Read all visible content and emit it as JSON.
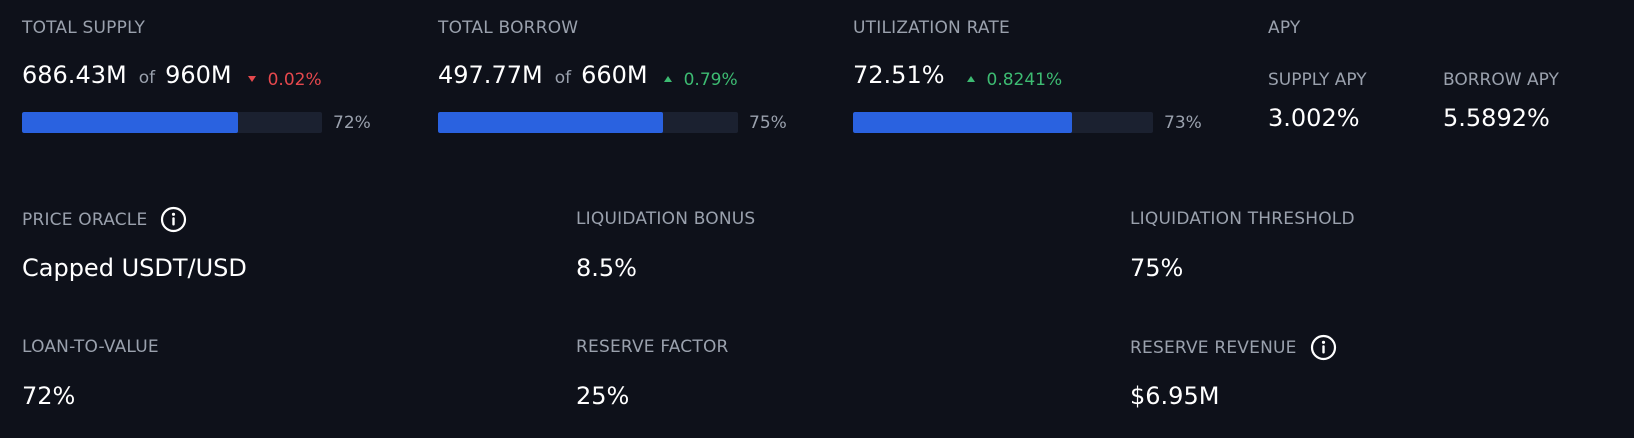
{
  "colors": {
    "background": "#0e111a",
    "label": "#9aa1ad",
    "bar_fill": "#2a62e0",
    "bar_track": "#1b2130",
    "negative": "#e5484d",
    "positive": "#3dbb72"
  },
  "total_supply": {
    "label": "TOTAL SUPPLY",
    "amount": "686.43M",
    "of": "of",
    "cap": "960M",
    "change": "0.02%",
    "change_direction": "down",
    "progress_pct": "72%",
    "progress_fraction": 0.72
  },
  "total_borrow": {
    "label": "TOTAL BORROW",
    "amount": "497.77M",
    "of": "of",
    "cap": "660M",
    "change": "0.79%",
    "change_direction": "up",
    "progress_pct": "75%",
    "progress_fraction": 0.75
  },
  "utilization_rate": {
    "label": "UTILIZATION RATE",
    "amount": "72.51%",
    "change": "0.8241%",
    "change_direction": "up",
    "progress_pct": "73%",
    "progress_fraction": 0.73
  },
  "apy": {
    "label": "APY",
    "supply_label": "SUPPLY APY",
    "supply_value": "3.002%",
    "borrow_label": "BORROW APY",
    "borrow_value": "5.5892%"
  },
  "price_oracle": {
    "label": "PRICE ORACLE",
    "icon": "info-icon",
    "value": "Capped USDT/USD"
  },
  "liquidation_bonus": {
    "label": "LIQUIDATION BONUS",
    "value": "8.5%"
  },
  "liquidation_threshold": {
    "label": "LIQUIDATION THRESHOLD",
    "value": "75%"
  },
  "loan_to_value": {
    "label": "LOAN-TO-VALUE",
    "value": "72%"
  },
  "reserve_factor": {
    "label": "RESERVE FACTOR",
    "value": "25%"
  },
  "reserve_revenue": {
    "label": "RESERVE REVENUE",
    "icon": "info-icon",
    "value": "$6.95M"
  }
}
